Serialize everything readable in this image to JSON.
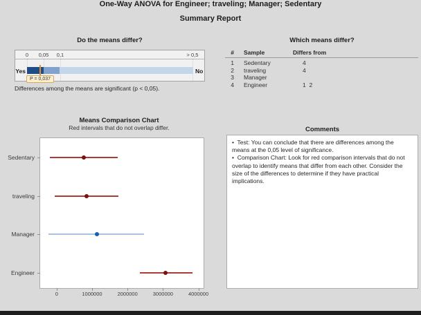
{
  "title": {
    "line1": "One-Way ANOVA for Engineer; traveling; Manager; Sedentary",
    "line2": "Summary Report"
  },
  "pvalue_panel": {
    "title": "Do the means differ?",
    "scale_ticks": [
      "0",
      "0,05",
      "0,1",
      "> 0,5"
    ],
    "yes_label": "Yes",
    "no_label": "No",
    "p_label": "P = 0,037",
    "p_value": 0.037,
    "caption": "Differences among the means are significant (p < 0,05).",
    "colors": {
      "significant": "#1d4e89",
      "marginal": "#7fa3ce",
      "not_significant": "#c3d6ea",
      "marker": "#e0922f",
      "p_box_bg": "#fbeed2",
      "p_box_border": "#dba94e"
    }
  },
  "which_means_differ": {
    "title": "Which means differ?",
    "headers": {
      "num": "#",
      "sample": "Sample",
      "differs": "Differs from"
    },
    "rows": [
      {
        "num": "1",
        "sample": "Sedentary",
        "differs": "4"
      },
      {
        "num": "2",
        "sample": "traveling",
        "differs": "4"
      },
      {
        "num": "3",
        "sample": "Manager",
        "differs": ""
      },
      {
        "num": "4",
        "sample": "Engineer",
        "differs": "1  2"
      }
    ]
  },
  "chart_data": {
    "type": "interval",
    "title": "Means Comparison Chart",
    "subtitle": "Red intervals that do not overlap differ.",
    "xlim": [
      -465000,
      4145000
    ],
    "x_ticks": [
      0,
      1000000,
      2000000,
      3000000,
      4000000
    ],
    "x_tick_labels": [
      "0",
      "1000000",
      "2000000",
      "3000000",
      "4000000"
    ],
    "series": [
      {
        "name": "Sedentary",
        "mean": 760000,
        "lower": -190000,
        "upper": 1720000,
        "color": "red"
      },
      {
        "name": "traveling",
        "mean": 850000,
        "lower": -60000,
        "upper": 1740000,
        "color": "red"
      },
      {
        "name": "Manager",
        "mean": 1130000,
        "lower": -230000,
        "upper": 2470000,
        "color": "blue"
      },
      {
        "name": "Engineer",
        "mean": 3080000,
        "lower": 2350000,
        "upper": 3830000,
        "color": "red"
      }
    ],
    "colors": {
      "red_line": "#a93b32",
      "red_dot": "#7b100e",
      "blue_line": "#a5c3df",
      "blue_dot": "#1561ae"
    }
  },
  "comments": {
    "title": "Comments",
    "bullets": [
      "Test: You can conclude that there are differences among the means at the 0,05 level of significance.",
      "Comparison Chart: Look for red comparison intervals that do not overlap to identify means that differ from each other. Consider the size of the differences to determine if they have practical implications."
    ]
  }
}
